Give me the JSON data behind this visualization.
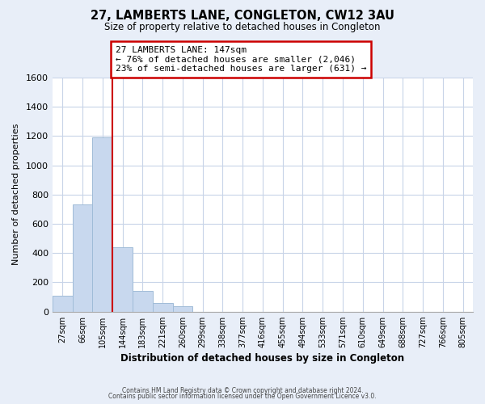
{
  "title": "27, LAMBERTS LANE, CONGLETON, CW12 3AU",
  "subtitle": "Size of property relative to detached houses in Congleton",
  "xlabel": "Distribution of detached houses by size in Congleton",
  "ylabel": "Number of detached properties",
  "footer_line1": "Contains HM Land Registry data © Crown copyright and database right 2024.",
  "footer_line2": "Contains public sector information licensed under the Open Government Licence v3.0.",
  "bin_labels": [
    "27sqm",
    "66sqm",
    "105sqm",
    "144sqm",
    "183sqm",
    "221sqm",
    "260sqm",
    "299sqm",
    "338sqm",
    "377sqm",
    "416sqm",
    "455sqm",
    "494sqm",
    "533sqm",
    "571sqm",
    "610sqm",
    "649sqm",
    "688sqm",
    "727sqm",
    "766sqm",
    "805sqm"
  ],
  "bar_values": [
    110,
    730,
    1190,
    440,
    140,
    60,
    35,
    0,
    0,
    0,
    0,
    0,
    0,
    0,
    0,
    0,
    0,
    0,
    0,
    0,
    0
  ],
  "bar_color": "#c8d8ee",
  "bar_edge_color": "#a0bcd8",
  "reference_line_color": "#cc0000",
  "annotation_line1": "27 LAMBERTS LANE: 147sqm",
  "annotation_line2": "← 76% of detached houses are smaller (2,046)",
  "annotation_line3": "23% of semi-detached houses are larger (631) →",
  "ylim": [
    0,
    1600
  ],
  "yticks": [
    0,
    200,
    400,
    600,
    800,
    1000,
    1200,
    1400,
    1600
  ],
  "bg_color": "#e8eef8",
  "plot_bg_color": "#ffffff",
  "grid_color": "#c8d4e8"
}
